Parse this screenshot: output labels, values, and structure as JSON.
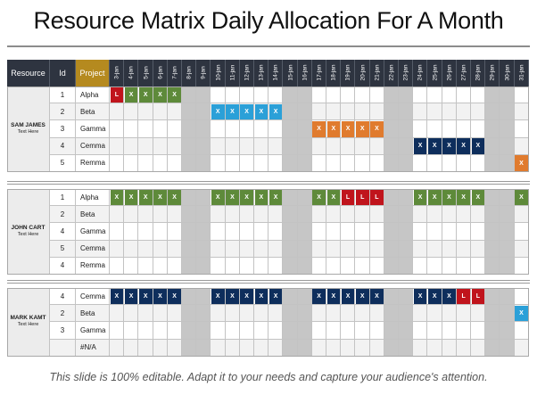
{
  "title": "Resource Matrix Daily Allocation For A Month",
  "footer": "This slide is 100% editable. Adapt it to your needs and capture your audience's attention.",
  "columns": {
    "resource": "Resource",
    "id": "Id",
    "project": "Project"
  },
  "days": [
    "3-jan",
    "4-jan",
    "5-jan",
    "6-jan",
    "7-jan",
    "8-jan",
    "9-jan",
    "10-jan",
    "11-jan",
    "12-jan",
    "13-jan",
    "14-jan",
    "15-jan",
    "16-jan",
    "17-jan",
    "18-jan",
    "19-jan",
    "20-jan",
    "21-jan",
    "22-jan",
    "23-jan",
    "24-jan",
    "25-jan",
    "26-jan",
    "27-jan",
    "28-jan",
    "29-jan",
    "30-jan",
    "31-jan"
  ],
  "weekend_days": [
    "8-jan",
    "9-jan",
    "15-jan",
    "16-jan",
    "22-jan",
    "23-jan",
    "29-jan",
    "30-jan"
  ],
  "colors": {
    "header": "#2e3440",
    "weekend": "#c6c6c6",
    "row_alt": "#f2f2f2",
    "name_bg": "#ececec",
    "G": "#5e8a3a",
    "B": "#2ba0d8",
    "O": "#e07b2e",
    "N": "#0e2e5c",
    "R": "#c0141c"
  },
  "groups": [
    {
      "name": "SAM JAMES",
      "subtitle": "Text Here",
      "rows": [
        {
          "id": "1",
          "project": "Alpha",
          "marks": [
            {
              "day": "3-jan",
              "text": "L",
              "color": "R"
            },
            {
              "day": "4-jan",
              "text": "X",
              "color": "G"
            },
            {
              "day": "5-jan",
              "text": "X",
              "color": "G"
            },
            {
              "day": "6-jan",
              "text": "X",
              "color": "G"
            },
            {
              "day": "7-jan",
              "text": "X",
              "color": "G"
            }
          ]
        },
        {
          "id": "2",
          "project": "Beta",
          "marks": [
            {
              "day": "10-jan",
              "text": "X",
              "color": "B"
            },
            {
              "day": "11-jan",
              "text": "X",
              "color": "B"
            },
            {
              "day": "12-jan",
              "text": "X",
              "color": "B"
            },
            {
              "day": "13-jan",
              "text": "X",
              "color": "B"
            },
            {
              "day": "14-jan",
              "text": "X",
              "color": "B"
            }
          ]
        },
        {
          "id": "3",
          "project": "Gamma",
          "marks": [
            {
              "day": "17-jan",
              "text": "X",
              "color": "O"
            },
            {
              "day": "18-jan",
              "text": "X",
              "color": "O"
            },
            {
              "day": "19-jan",
              "text": "X",
              "color": "O"
            },
            {
              "day": "20-jan",
              "text": "X",
              "color": "O"
            },
            {
              "day": "21-jan",
              "text": "X",
              "color": "O"
            }
          ]
        },
        {
          "id": "4",
          "project": "Cemma",
          "marks": [
            {
              "day": "24-jan",
              "text": "X",
              "color": "N"
            },
            {
              "day": "25-jan",
              "text": "X",
              "color": "N"
            },
            {
              "day": "26-jan",
              "text": "X",
              "color": "N"
            },
            {
              "day": "27-jan",
              "text": "X",
              "color": "N"
            },
            {
              "day": "28-jan",
              "text": "X",
              "color": "N"
            }
          ]
        },
        {
          "id": "5",
          "project": "Remma",
          "marks": [
            {
              "day": "31-jan",
              "text": "X",
              "color": "O"
            }
          ]
        }
      ]
    },
    {
      "name": "JOHN CART",
      "subtitle": "Text Here",
      "rows": [
        {
          "id": "1",
          "project": "Alpha",
          "marks": [
            {
              "day": "3-jan",
              "text": "X",
              "color": "G"
            },
            {
              "day": "4-jan",
              "text": "X",
              "color": "G"
            },
            {
              "day": "5-jan",
              "text": "X",
              "color": "G"
            },
            {
              "day": "6-jan",
              "text": "X",
              "color": "G"
            },
            {
              "day": "7-jan",
              "text": "X",
              "color": "G"
            },
            {
              "day": "10-jan",
              "text": "X",
              "color": "G"
            },
            {
              "day": "11-jan",
              "text": "X",
              "color": "G"
            },
            {
              "day": "12-jan",
              "text": "X",
              "color": "G"
            },
            {
              "day": "13-jan",
              "text": "X",
              "color": "G"
            },
            {
              "day": "14-jan",
              "text": "X",
              "color": "G"
            },
            {
              "day": "17-jan",
              "text": "X",
              "color": "G"
            },
            {
              "day": "18-jan",
              "text": "X",
              "color": "G"
            },
            {
              "day": "19-jan",
              "text": "L",
              "color": "R"
            },
            {
              "day": "20-jan",
              "text": "L",
              "color": "R"
            },
            {
              "day": "21-jan",
              "text": "L",
              "color": "R"
            },
            {
              "day": "24-jan",
              "text": "X",
              "color": "G"
            },
            {
              "day": "25-jan",
              "text": "X",
              "color": "G"
            },
            {
              "day": "26-jan",
              "text": "X",
              "color": "G"
            },
            {
              "day": "27-jan",
              "text": "X",
              "color": "G"
            },
            {
              "day": "28-jan",
              "text": "X",
              "color": "G"
            },
            {
              "day": "31-jan",
              "text": "X",
              "color": "G"
            }
          ]
        },
        {
          "id": "2",
          "project": "Beta",
          "marks": []
        },
        {
          "id": "4",
          "project": "Gamma",
          "marks": []
        },
        {
          "id": "5",
          "project": "Cemma",
          "marks": []
        },
        {
          "id": "4",
          "project": "Remma",
          "marks": []
        }
      ]
    },
    {
      "name": "MARK KAMT",
      "subtitle": "Text Here",
      "rows": [
        {
          "id": "4",
          "project": "Cemma",
          "marks": [
            {
              "day": "3-jan",
              "text": "X",
              "color": "N"
            },
            {
              "day": "4-jan",
              "text": "X",
              "color": "N"
            },
            {
              "day": "5-jan",
              "text": "X",
              "color": "N"
            },
            {
              "day": "6-jan",
              "text": "X",
              "color": "N"
            },
            {
              "day": "7-jan",
              "text": "X",
              "color": "N"
            },
            {
              "day": "10-jan",
              "text": "X",
              "color": "N"
            },
            {
              "day": "11-jan",
              "text": "X",
              "color": "N"
            },
            {
              "day": "12-jan",
              "text": "X",
              "color": "N"
            },
            {
              "day": "13-jan",
              "text": "X",
              "color": "N"
            },
            {
              "day": "14-jan",
              "text": "X",
              "color": "N"
            },
            {
              "day": "17-jan",
              "text": "X",
              "color": "N"
            },
            {
              "day": "18-jan",
              "text": "X",
              "color": "N"
            },
            {
              "day": "19-jan",
              "text": "X",
              "color": "N"
            },
            {
              "day": "20-jan",
              "text": "X",
              "color": "N"
            },
            {
              "day": "21-jan",
              "text": "X",
              "color": "N"
            },
            {
              "day": "24-jan",
              "text": "X",
              "color": "N"
            },
            {
              "day": "25-jan",
              "text": "X",
              "color": "N"
            },
            {
              "day": "26-jan",
              "text": "X",
              "color": "N"
            },
            {
              "day": "27-jan",
              "text": "L",
              "color": "R"
            },
            {
              "day": "28-jan",
              "text": "L",
              "color": "R"
            }
          ]
        },
        {
          "id": "2",
          "project": "Beta",
          "marks": [
            {
              "day": "31-jan",
              "text": "X",
              "color": "B"
            }
          ]
        },
        {
          "id": "3",
          "project": "Gamma",
          "marks": []
        },
        {
          "id": "",
          "project": "#N/A",
          "marks": []
        }
      ]
    }
  ]
}
